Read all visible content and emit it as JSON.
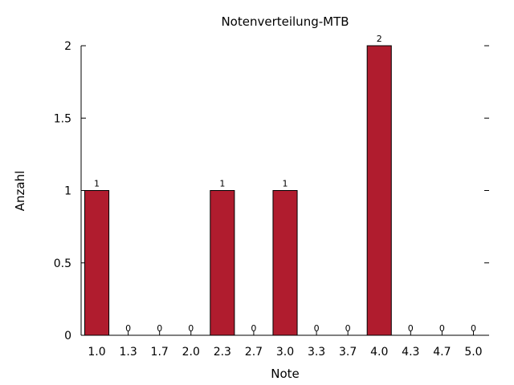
{
  "chart_data": {
    "type": "bar",
    "title": "Notenverteilung-MTB",
    "xlabel": "Note",
    "ylabel": "Anzahl",
    "categories": [
      "1.0",
      "1.3",
      "1.7",
      "2.0",
      "2.3",
      "2.7",
      "3.0",
      "3.3",
      "3.7",
      "4.0",
      "4.3",
      "4.7",
      "5.0"
    ],
    "values": [
      1,
      0,
      0,
      0,
      1,
      0,
      1,
      0,
      0,
      2,
      0,
      0,
      0
    ],
    "data_labels": [
      "1",
      "0",
      "0",
      "0",
      "1",
      "0",
      "1",
      "0",
      "0",
      "2",
      "0",
      "0",
      "0"
    ],
    "ylim": [
      0,
      2
    ],
    "yticks": [
      0,
      0.5,
      1,
      1.5,
      2
    ],
    "ytick_labels": [
      "0",
      "0.5",
      "1",
      "1.5",
      "2"
    ],
    "grid": false,
    "legend": "none",
    "bar_color": "#b01c2e",
    "bar_edge_color": "#000000"
  }
}
